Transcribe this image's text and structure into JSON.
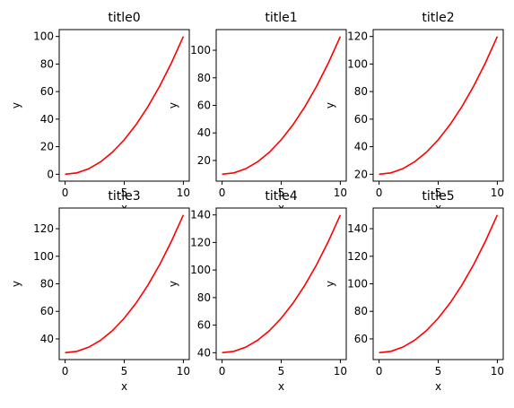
{
  "chart_data": [
    {
      "type": "line",
      "title": "title0",
      "xlabel": "x",
      "ylabel": "y",
      "x": [
        0,
        1,
        2,
        3,
        4,
        5,
        6,
        7,
        8,
        9,
        10
      ],
      "series": [
        {
          "values": [
            0,
            1,
            4,
            9,
            16,
            25,
            36,
            49,
            64,
            81,
            100
          ],
          "color": "#ff0000"
        }
      ],
      "xlim": [
        -0.5,
        10.5
      ],
      "ylim": [
        -5,
        105
      ],
      "xticks": [
        0,
        5,
        10
      ],
      "yticks": [
        0,
        20,
        40,
        60,
        80,
        100
      ],
      "grid": false
    },
    {
      "type": "line",
      "title": "title1",
      "xlabel": "x",
      "ylabel": "y",
      "x": [
        0,
        1,
        2,
        3,
        4,
        5,
        6,
        7,
        8,
        9,
        10
      ],
      "series": [
        {
          "values": [
            10,
            11,
            14,
            19,
            26,
            35,
            46,
            59,
            74,
            91,
            110
          ],
          "color": "#ff0000"
        }
      ],
      "xlim": [
        -0.5,
        10.5
      ],
      "ylim": [
        5,
        115
      ],
      "xticks": [
        0,
        5,
        10
      ],
      "yticks": [
        20,
        40,
        60,
        80,
        100
      ],
      "grid": false
    },
    {
      "type": "line",
      "title": "title2",
      "xlabel": "x",
      "ylabel": "y",
      "x": [
        0,
        1,
        2,
        3,
        4,
        5,
        6,
        7,
        8,
        9,
        10
      ],
      "series": [
        {
          "values": [
            20,
            21,
            24,
            29,
            36,
            45,
            56,
            69,
            84,
            101,
            120
          ],
          "color": "#ff0000"
        }
      ],
      "xlim": [
        -0.5,
        10.5
      ],
      "ylim": [
        15,
        125
      ],
      "xticks": [
        0,
        5,
        10
      ],
      "yticks": [
        20,
        40,
        60,
        80,
        100,
        120
      ],
      "grid": false
    },
    {
      "type": "line",
      "title": "title3",
      "xlabel": "x",
      "ylabel": "y",
      "x": [
        0,
        1,
        2,
        3,
        4,
        5,
        6,
        7,
        8,
        9,
        10
      ],
      "series": [
        {
          "values": [
            30,
            31,
            34,
            39,
            46,
            55,
            66,
            79,
            94,
            111,
            130
          ],
          "color": "#ff0000"
        }
      ],
      "xlim": [
        -0.5,
        10.5
      ],
      "ylim": [
        25,
        135
      ],
      "xticks": [
        0,
        5,
        10
      ],
      "yticks": [
        40,
        60,
        80,
        100,
        120
      ],
      "grid": false
    },
    {
      "type": "line",
      "title": "title4",
      "xlabel": "x",
      "ylabel": "y",
      "x": [
        0,
        1,
        2,
        3,
        4,
        5,
        6,
        7,
        8,
        9,
        10
      ],
      "series": [
        {
          "values": [
            40,
            41,
            44,
            49,
            56,
            65,
            76,
            89,
            104,
            121,
            140
          ],
          "color": "#ff0000"
        }
      ],
      "xlim": [
        -0.5,
        10.5
      ],
      "ylim": [
        35,
        145
      ],
      "xticks": [
        0,
        5,
        10
      ],
      "yticks": [
        40,
        60,
        80,
        100,
        120,
        140
      ],
      "grid": false
    },
    {
      "type": "line",
      "title": "title5",
      "xlabel": "x",
      "ylabel": "y",
      "x": [
        0,
        1,
        2,
        3,
        4,
        5,
        6,
        7,
        8,
        9,
        10
      ],
      "series": [
        {
          "values": [
            50,
            51,
            54,
            59,
            66,
            75,
            86,
            99,
            114,
            131,
            150
          ],
          "color": "#ff0000"
        }
      ],
      "xlim": [
        -0.5,
        10.5
      ],
      "ylim": [
        45,
        155
      ],
      "xticks": [
        0,
        5,
        10
      ],
      "yticks": [
        60,
        80,
        100,
        120,
        140
      ],
      "grid": false
    }
  ]
}
